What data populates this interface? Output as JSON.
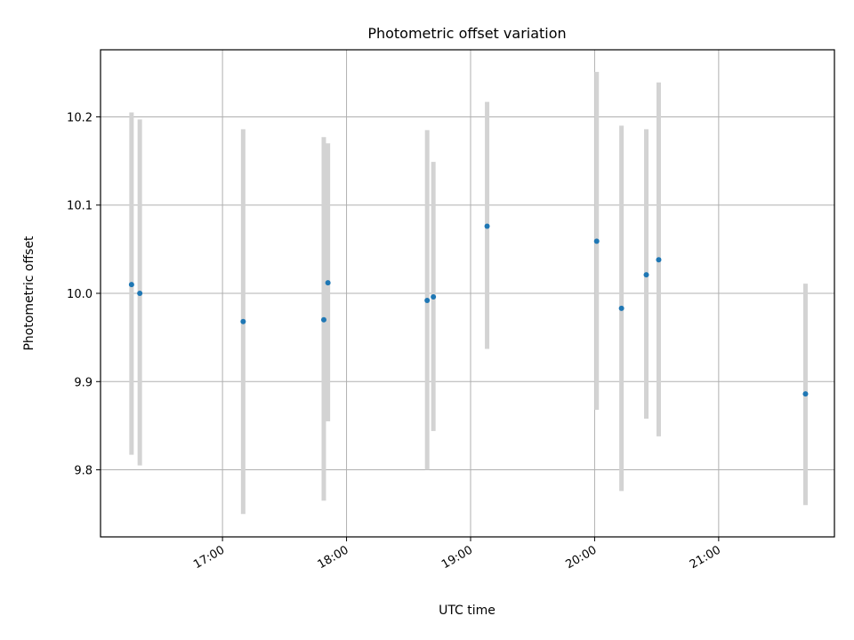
{
  "chart_data": {
    "type": "scatter",
    "title": "Photometric offset variation",
    "xlabel": "UTC time",
    "ylabel": "Photometric offset",
    "x_axis": {
      "kind": "time",
      "range": [
        "16:01",
        "21:56"
      ],
      "ticks": [
        "17:00",
        "18:00",
        "19:00",
        "20:00",
        "21:00"
      ]
    },
    "y_axis": {
      "range": [
        9.724,
        10.276
      ],
      "ticks": [
        "9.8",
        "9.9",
        "10.0",
        "10.1",
        "10.2"
      ]
    },
    "grid": true,
    "legend": "none",
    "colors": {
      "points": "#1f77b4",
      "errorbars": "#d3d3d3"
    },
    "points": [
      {
        "time": "16:16",
        "y": 10.01,
        "low": 9.817,
        "high": 10.205
      },
      {
        "time": "16:20",
        "y": 10.0,
        "low": 9.805,
        "high": 10.197
      },
      {
        "time": "17:10",
        "y": 9.968,
        "low": 9.75,
        "high": 10.186
      },
      {
        "time": "17:49",
        "y": 9.97,
        "low": 9.765,
        "high": 10.177
      },
      {
        "time": "17:51",
        "y": 10.012,
        "low": 9.855,
        "high": 10.17
      },
      {
        "time": "18:39",
        "y": 9.992,
        "low": 9.8,
        "high": 10.185
      },
      {
        "time": "18:42",
        "y": 9.996,
        "low": 9.844,
        "high": 10.149
      },
      {
        "time": "19:08",
        "y": 10.076,
        "low": 9.937,
        "high": 10.217
      },
      {
        "time": "20:01",
        "y": 10.059,
        "low": 9.868,
        "high": 10.251
      },
      {
        "time": "20:13",
        "y": 9.983,
        "low": 9.776,
        "high": 10.19
      },
      {
        "time": "20:25",
        "y": 10.021,
        "low": 9.858,
        "high": 10.186
      },
      {
        "time": "20:31",
        "y": 10.038,
        "low": 9.838,
        "high": 10.239
      },
      {
        "time": "21:42",
        "y": 9.886,
        "low": 9.76,
        "high": 10.011
      }
    ]
  }
}
